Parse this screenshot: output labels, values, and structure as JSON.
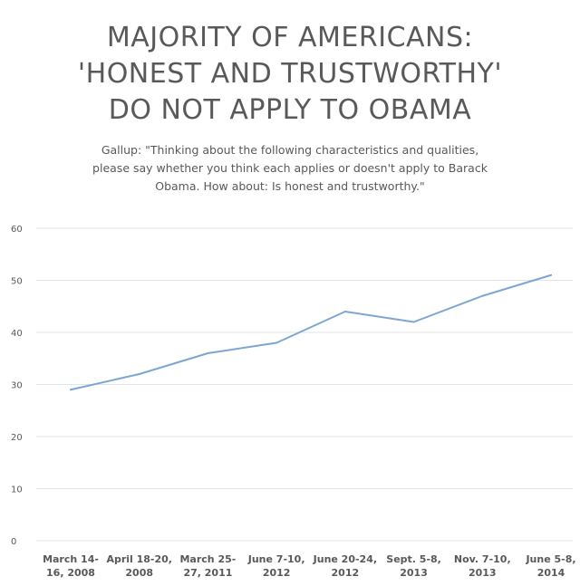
{
  "chart_data": {
    "type": "line",
    "title_lines": [
      "MAJORITY OF AMERICANS:",
      "'HONEST AND TRUSTWORTHY'",
      "DO NOT APPLY TO OBAMA"
    ],
    "subtitle_lines": [
      "Gallup: \"Thinking about the following characteristics and qualities,",
      "please say whether you think each applies or doesn't apply to Barack",
      "Obama. How about: Is honest and trustworthy.\""
    ],
    "categories": [
      [
        "March 14-",
        "16, 2008"
      ],
      [
        "April 18-20,",
        "2008"
      ],
      [
        "March 25-",
        "27, 2011"
      ],
      [
        "June 7-10,",
        "2012"
      ],
      [
        "June 20-24,",
        "2012"
      ],
      [
        "Sept. 5-8,",
        "2013"
      ],
      [
        "Nov. 7-10,",
        "2013"
      ],
      [
        "June 5-8,",
        "2014"
      ]
    ],
    "series": [
      {
        "values": [
          29,
          32,
          36,
          38,
          44,
          42,
          47,
          51
        ]
      }
    ],
    "ylim": [
      0,
      60
    ],
    "yticks": [
      0,
      10,
      20,
      30,
      40,
      50,
      60
    ],
    "grid": true,
    "line_color": "#7ea6d3",
    "grid_color": "#e3e3e3",
    "text_color": "#595959"
  }
}
